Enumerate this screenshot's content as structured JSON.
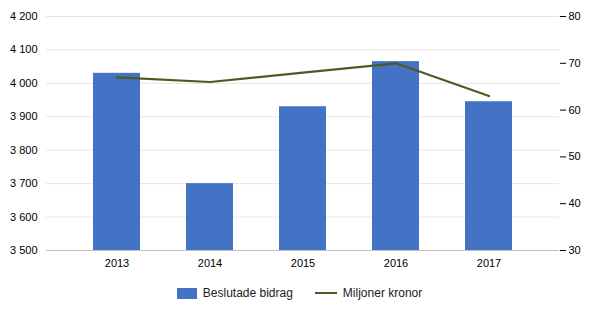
{
  "chart_data": {
    "type": "bar",
    "categories": [
      "2013",
      "2014",
      "2015",
      "2016",
      "2017"
    ],
    "series": [
      {
        "name": "Beslutade bidrag",
        "type": "bar",
        "color": "#4472C4",
        "values": [
          4030,
          3700,
          3930,
          4065,
          3945
        ]
      },
      {
        "name": "Miljoner kronor",
        "type": "line",
        "axis": "y2",
        "color": "#4D5A21",
        "values": [
          67,
          66,
          68,
          70,
          63
        ]
      }
    ],
    "ylim": [
      3500,
      4200
    ],
    "yticks": [
      {
        "value": 3500,
        "label": "3 500"
      },
      {
        "value": 3600,
        "label": "3 600"
      },
      {
        "value": 3700,
        "label": "3 700"
      },
      {
        "value": 3800,
        "label": "3 800"
      },
      {
        "value": 3900,
        "label": "3 900"
      },
      {
        "value": 4000,
        "label": "4 000"
      },
      {
        "value": 4100,
        "label": "4 100"
      },
      {
        "value": 4200,
        "label": "4 200"
      }
    ],
    "y2lim": [
      30,
      80
    ],
    "y2ticks": [
      30,
      40,
      50,
      60,
      70,
      80
    ],
    "grid": true,
    "legend": "bottom"
  }
}
